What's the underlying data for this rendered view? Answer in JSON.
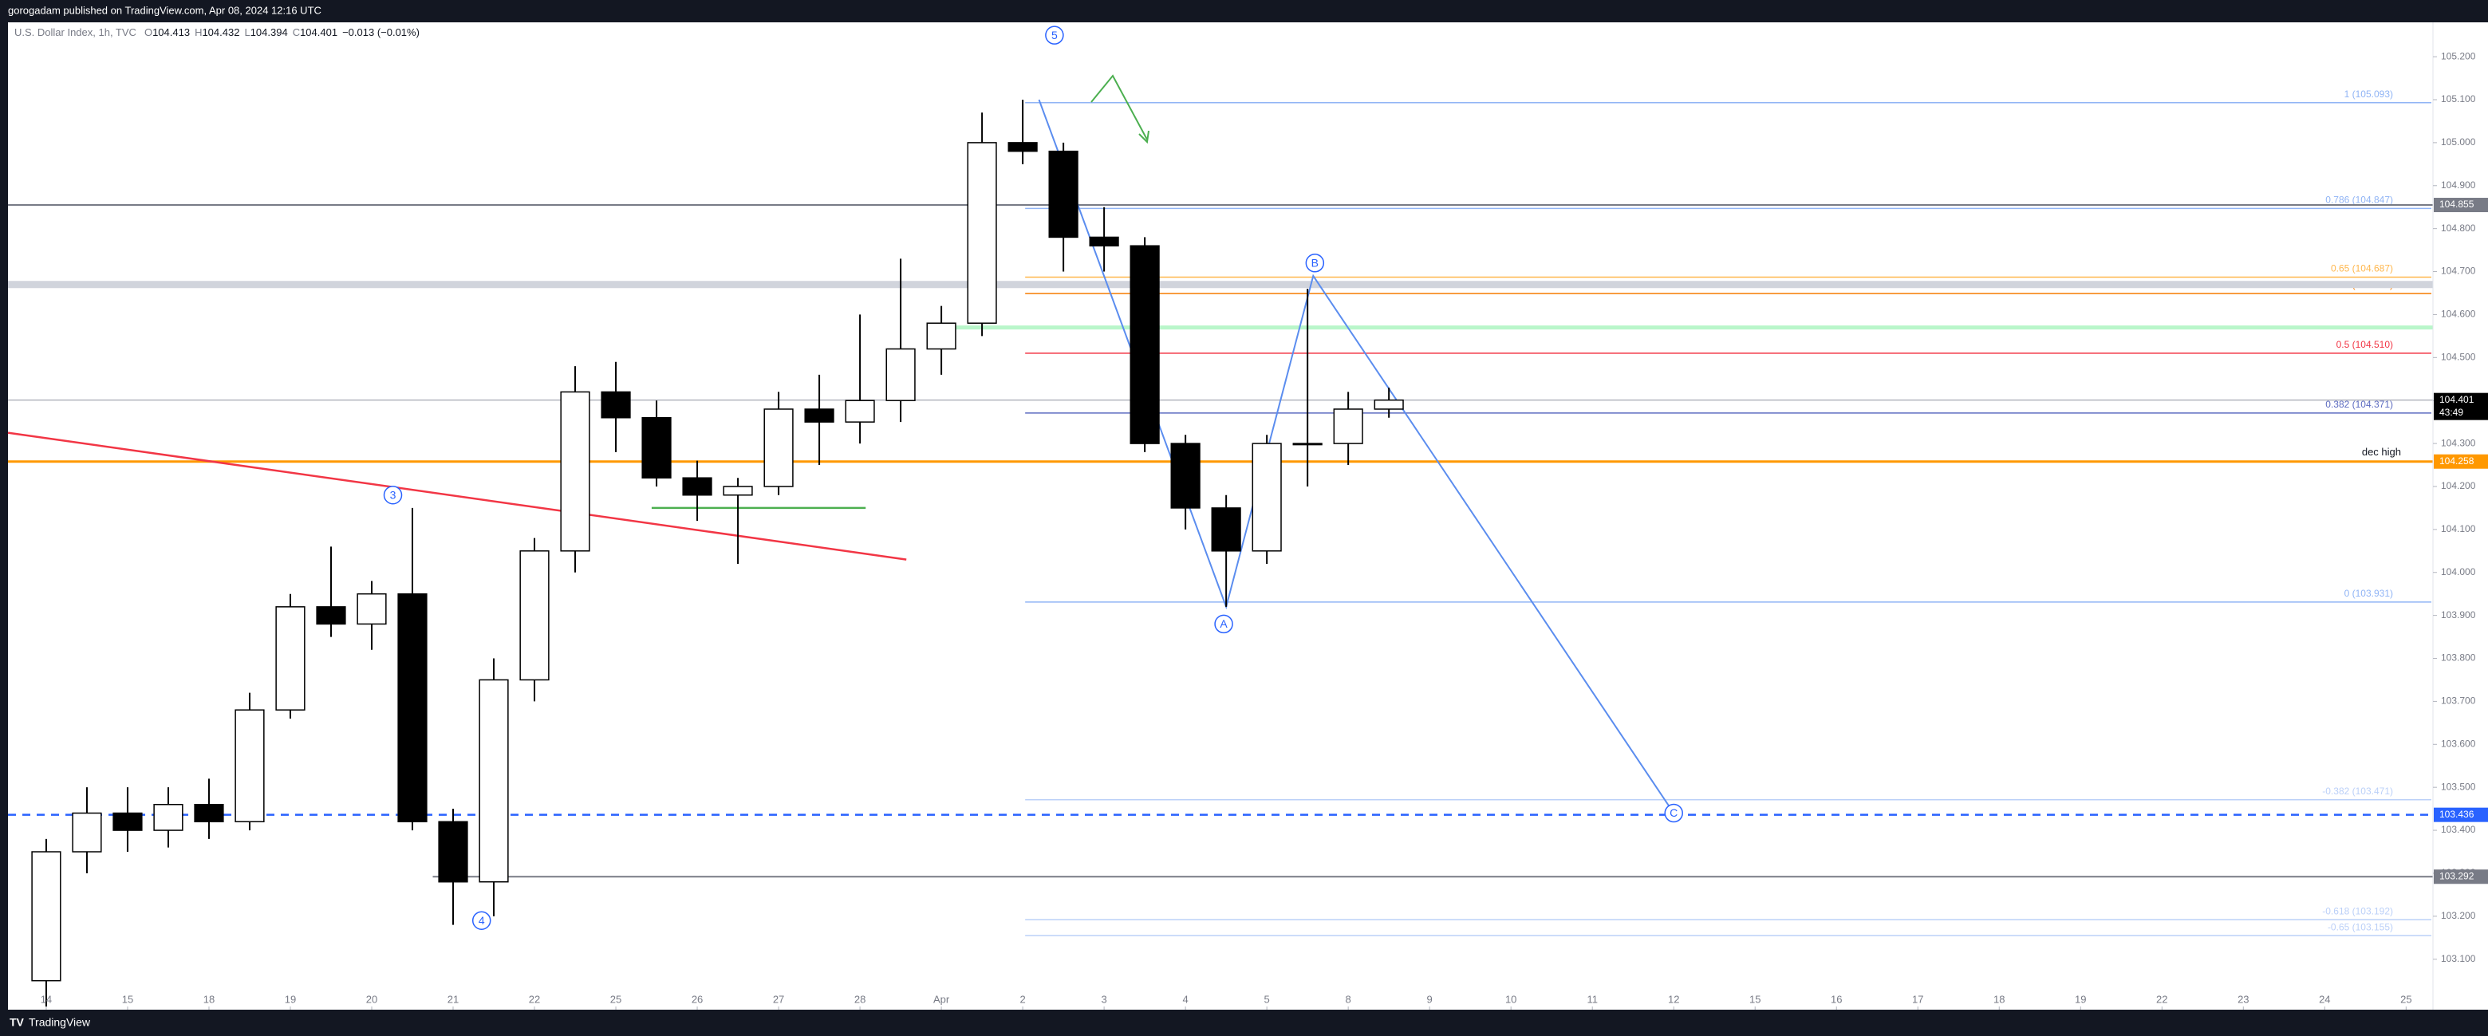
{
  "header": {
    "publisher": "gorogadam published on TradingView.com, Apr 08, 2024 12:16 UTC"
  },
  "footer": {
    "brand": "TradingView"
  },
  "chart_data": {
    "type": "candlestick",
    "legend": {
      "name": "U.S. Dollar Index, 1h, TVC",
      "items": [
        {
          "key": "O",
          "value": 104.413
        },
        {
          "key": "H",
          "value": 104.432
        },
        {
          "key": "L",
          "value": 104.394
        },
        {
          "key": "C",
          "value": 104.401
        }
      ],
      "change": "−0.013 (−0.01%)"
    },
    "up_color": "#ffffff",
    "down_color": "#000000",
    "wick_color": "#000000",
    "x": [
      0,
      0.5,
      1,
      1.5,
      2,
      2.5,
      3,
      3.5,
      4,
      4.5,
      5,
      5.5,
      6,
      6.5,
      7,
      7.5,
      8,
      8.5,
      9,
      9.5,
      10,
      10.5,
      11,
      11.5,
      12,
      12.5,
      13,
      13.5,
      14,
      14.5,
      15,
      15.5,
      16,
      16.5
    ],
    "open": [
      103.05,
      103.35,
      103.44,
      103.4,
      103.46,
      103.42,
      103.68,
      103.92,
      103.88,
      103.95,
      103.42,
      103.28,
      103.75,
      104.05,
      104.42,
      104.36,
      104.22,
      104.18,
      104.2,
      104.38,
      104.35,
      104.4,
      104.52,
      104.58,
      105.0,
      104.98,
      104.78,
      104.76,
      104.3,
      104.15,
      104.05,
      104.3,
      104.3,
      104.38
    ],
    "high": [
      103.38,
      103.5,
      103.5,
      103.5,
      103.52,
      103.72,
      103.95,
      104.06,
      103.98,
      104.15,
      103.45,
      103.8,
      104.08,
      104.48,
      104.49,
      104.4,
      104.26,
      104.22,
      104.42,
      104.46,
      104.6,
      104.73,
      104.62,
      105.07,
      105.1,
      105.0,
      104.85,
      104.78,
      104.32,
      104.18,
      104.32,
      104.66,
      104.42,
      104.43
    ],
    "low": [
      102.99,
      103.3,
      103.35,
      103.36,
      103.38,
      103.4,
      103.66,
      103.85,
      103.82,
      103.4,
      103.18,
      103.2,
      103.7,
      104.0,
      104.28,
      104.2,
      104.12,
      104.02,
      104.18,
      104.25,
      104.3,
      104.35,
      104.46,
      104.55,
      104.95,
      104.7,
      104.7,
      104.28,
      104.1,
      103.92,
      104.02,
      104.2,
      104.25,
      104.36
    ],
    "close": [
      103.35,
      103.44,
      103.4,
      103.46,
      103.42,
      103.68,
      103.92,
      103.88,
      103.95,
      103.42,
      103.28,
      103.75,
      104.05,
      104.42,
      104.36,
      104.22,
      104.18,
      104.2,
      104.38,
      104.35,
      104.4,
      104.52,
      104.58,
      105.0,
      104.98,
      104.78,
      104.76,
      104.3,
      104.15,
      104.05,
      104.3,
      104.3,
      104.38,
      104.401
    ],
    "xlim": [
      -0.47,
      29.33
    ],
    "xticks": [
      {
        "value": 0,
        "label": "14"
      },
      {
        "value": 1,
        "label": "15"
      },
      {
        "value": 2,
        "label": "18"
      },
      {
        "value": 3,
        "label": "19"
      },
      {
        "value": 4,
        "label": "20"
      },
      {
        "value": 5,
        "label": "21"
      },
      {
        "value": 6,
        "label": "22"
      },
      {
        "value": 7,
        "label": "25"
      },
      {
        "value": 8,
        "label": "26"
      },
      {
        "value": 9,
        "label": "27"
      },
      {
        "value": 10,
        "label": "28"
      },
      {
        "value": 11,
        "label": "Apr"
      },
      {
        "value": 12,
        "label": "2"
      },
      {
        "value": 13,
        "label": "3"
      },
      {
        "value": 14,
        "label": "4"
      },
      {
        "value": 15,
        "label": "5"
      },
      {
        "value": 16,
        "label": "8"
      },
      {
        "value": 17,
        "label": "9"
      },
      {
        "value": 18,
        "label": "10"
      },
      {
        "value": 19,
        "label": "11"
      },
      {
        "value": 20,
        "label": "12"
      },
      {
        "value": 21,
        "label": "15"
      },
      {
        "value": 22,
        "label": "16"
      },
      {
        "value": 23,
        "label": "17"
      },
      {
        "value": 24,
        "label": "18"
      },
      {
        "value": 25,
        "label": "19"
      },
      {
        "value": 26,
        "label": "22"
      },
      {
        "value": 27,
        "label": "23"
      },
      {
        "value": 28,
        "label": "24"
      },
      {
        "value": 29,
        "label": "25"
      }
    ],
    "ylim": [
      102.99,
      105.28
    ],
    "yticks": [
      {
        "value": 103.1,
        "label": "103.100"
      },
      {
        "value": 103.2,
        "label": "103.200"
      },
      {
        "value": 103.3,
        "label": "103.300"
      },
      {
        "value": 103.4,
        "label": "103.400"
      },
      {
        "value": 103.5,
        "label": "103.500"
      },
      {
        "value": 103.6,
        "label": "103.600"
      },
      {
        "value": 103.7,
        "label": "103.700"
      },
      {
        "value": 103.8,
        "label": "103.800"
      },
      {
        "value": 103.9,
        "label": "103.900"
      },
      {
        "value": 104.0,
        "label": "104.000"
      },
      {
        "value": 104.1,
        "label": "104.100"
      },
      {
        "value": 104.2,
        "label": "104.200"
      },
      {
        "value": 104.3,
        "label": "104.300"
      },
      {
        "value": 104.4,
        "label": "104.400"
      },
      {
        "value": 104.5,
        "label": "104.500"
      },
      {
        "value": 104.6,
        "label": "104.600"
      },
      {
        "value": 104.7,
        "label": "104.700"
      },
      {
        "value": 104.8,
        "label": "104.800"
      },
      {
        "value": 104.9,
        "label": "104.900"
      },
      {
        "value": 105.0,
        "label": "105.000"
      },
      {
        "value": 105.1,
        "label": "105.100"
      },
      {
        "value": 105.2,
        "label": "105.200"
      }
    ],
    "levels": [
      {
        "value": 104.67,
        "color": "#d1d4dc",
        "width": 9
      },
      {
        "value": 104.57,
        "color": "#b9f6ca",
        "width": 5,
        "from": 11.05
      },
      {
        "value": 104.855,
        "color": "#787b86",
        "width": 2,
        "box": "#787b86"
      },
      {
        "value": 104.401,
        "color": "#b2b5be",
        "width": 1.5,
        "box": "#000000",
        "countdown": "43:49"
      },
      {
        "value": 104.258,
        "color": "#ff9800",
        "width": 3,
        "box": "#ff9800",
        "note": "dec high"
      },
      {
        "value": 103.436,
        "color": "#2962ff",
        "width": 2.5,
        "dash": true,
        "box": "#2962ff"
      },
      {
        "value": 103.292,
        "color": "#787b86",
        "width": 2,
        "from": 4.75,
        "box": "#787b86"
      }
    ],
    "fib": {
      "from": 12.03,
      "levels": [
        {
          "value": 105.093,
          "label": "1 (105.093)",
          "color": "#90b4f5"
        },
        {
          "value": 104.847,
          "label": "0.786 (104.847)",
          "color": "#90b4f5"
        },
        {
          "value": 104.687,
          "label": "0.65 (104.687)",
          "color": "#ffb74d"
        },
        {
          "value": 104.649,
          "label": "0.618 (104.649)",
          "color": "#f57c00"
        },
        {
          "value": 104.51,
          "label": "0.5 (104.510)",
          "color": "#f23645"
        },
        {
          "value": 104.371,
          "label": "0.382 (104.371)",
          "color": "#5c6bc0"
        },
        {
          "value": 103.931,
          "label": "0 (103.931)",
          "color": "#90b4f5"
        },
        {
          "value": 103.471,
          "label": "-0.382 (103.471)",
          "color": "#bbd0f8"
        },
        {
          "value": 103.192,
          "label": "-0.618 (103.192)",
          "color": "#bbd0f8"
        },
        {
          "value": 103.155,
          "label": "-0.65 (103.155)",
          "color": "#bbd0f8"
        }
      ]
    },
    "lines": [
      {
        "x": [
          -0.47,
          10.57
        ],
        "y": [
          104.325,
          104.03
        ],
        "color": "#f23645",
        "width": 2.5
      },
      {
        "x": [
          7.44,
          10.07
        ],
        "y": [
          104.15,
          104.15
        ],
        "color": "#4caf50",
        "width": 2.5
      },
      {
        "x": [
          12.2,
          14.5,
          15.57,
          20.0
        ],
        "y": [
          105.1,
          103.92,
          104.69,
          103.44
        ],
        "color": "#5b8def",
        "width": 2
      }
    ],
    "waves": [
      {
        "label": "5",
        "x": 12.39,
        "y": 105.25
      },
      {
        "label": "3",
        "x": 4.26,
        "y": 104.18
      },
      {
        "label": "4",
        "x": 5.35,
        "y": 103.19
      },
      {
        "label": "A",
        "x": 14.47,
        "y": 103.88
      },
      {
        "label": "B",
        "x": 15.59,
        "y": 104.72
      },
      {
        "label": "C",
        "x": 20.0,
        "y": 103.44
      }
    ]
  }
}
